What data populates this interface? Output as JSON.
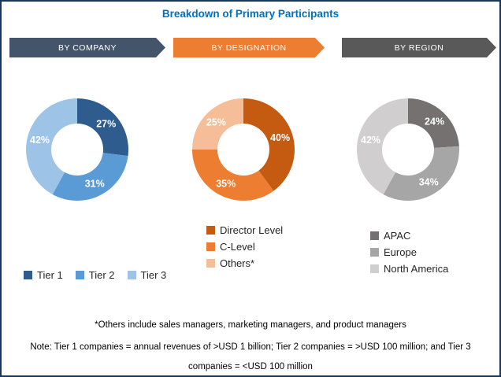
{
  "title": "Breakdown of Primary Participants",
  "columns": [
    {
      "header": "BY COMPANY",
      "header_color": "#44546A"
    },
    {
      "header": "BY DESIGNATION",
      "header_color": "#ED7D31"
    },
    {
      "header": "BY REGION",
      "header_color": "#595959"
    }
  ],
  "chart_data": [
    {
      "type": "pie",
      "title": "BY COMPANY",
      "donut": true,
      "start_angle_deg": 0,
      "direction": "clockwise",
      "segments": [
        {
          "label": "Tier 1",
          "value": 27,
          "color": "#2F5C8F",
          "data_label": "27%"
        },
        {
          "label": "Tier 2",
          "value": 31,
          "color": "#5B9BD5",
          "data_label": "31%"
        },
        {
          "label": "Tier 3",
          "value": 42,
          "color": "#9DC3E6",
          "data_label": "42%"
        }
      ],
      "legend_position": "bottom-horizontal"
    },
    {
      "type": "pie",
      "title": "BY DESIGNATION",
      "donut": true,
      "start_angle_deg": 0,
      "direction": "clockwise",
      "segments": [
        {
          "label": "Director Level",
          "value": 40,
          "color": "#C55A11",
          "data_label": "40%"
        },
        {
          "label": "C-Level",
          "value": 35,
          "color": "#ED7D31",
          "data_label": "35%"
        },
        {
          "label": "Others*",
          "value": 25,
          "color": "#F6BE98",
          "data_label": "25%"
        }
      ],
      "legend_position": "bottom-vertical"
    },
    {
      "type": "pie",
      "title": "BY REGION",
      "donut": true,
      "start_angle_deg": 0,
      "direction": "clockwise",
      "segments": [
        {
          "label": "APAC",
          "value": 24,
          "color": "#767171",
          "data_label": "24%"
        },
        {
          "label": "Europe",
          "value": 34,
          "color": "#A6A6A6",
          "data_label": "34%"
        },
        {
          "label": "North America",
          "value": 42,
          "color": "#D0CECE",
          "data_label": "42%"
        }
      ],
      "legend_position": "bottom-vertical"
    }
  ],
  "footnotes": [
    "*Others include sales managers, marketing managers, and product managers",
    "Note: Tier 1 companies = annual revenues of >USD 1 billion; Tier 2 companies = >USD 100 million; and Tier 3 companies = <USD 100 million"
  ],
  "colors": {
    "title_text": "#0070C0",
    "border": "#17375E",
    "percent_label_text": "#FFFFFF"
  }
}
